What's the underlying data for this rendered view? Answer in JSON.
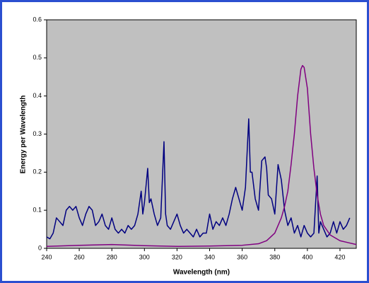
{
  "chart_data": {
    "type": "line",
    "x_label": "Wavelength (nm)",
    "y_label": "Energy per Wavelength",
    "xlim": [
      240,
      430
    ],
    "ylim": [
      0,
      0.6
    ],
    "xticks": [
      240,
      260,
      280,
      300,
      320,
      340,
      360,
      380,
      400,
      420
    ],
    "yticks": [
      0,
      0.1,
      0.2,
      0.3,
      0.4,
      0.5,
      0.6
    ],
    "grid": false,
    "plot_background": "#c0c0c0",
    "frame_color": "#2b4fd0",
    "series": [
      {
        "color": "#000080",
        "x": [
          240,
          242,
          244,
          246,
          248,
          250,
          252,
          254,
          256,
          258,
          260,
          262,
          264,
          266,
          268,
          270,
          272,
          274,
          276,
          278,
          280,
          282,
          284,
          286,
          288,
          290,
          292,
          294,
          296,
          298,
          299,
          300,
          302,
          303,
          304,
          306,
          308,
          310,
          312,
          313,
          314,
          316,
          318,
          320,
          322,
          324,
          326,
          328,
          330,
          332,
          334,
          336,
          338,
          340,
          342,
          344,
          346,
          348,
          350,
          352,
          354,
          356,
          358,
          360,
          362,
          364,
          365,
          366,
          368,
          370,
          372,
          374,
          375,
          376,
          378,
          380,
          382,
          384,
          386,
          388,
          390,
          392,
          394,
          396,
          398,
          400,
          402,
          404,
          406,
          407,
          408,
          410,
          412,
          414,
          416,
          418,
          420,
          422,
          424,
          426
        ],
        "values": [
          0.03,
          0.025,
          0.04,
          0.08,
          0.07,
          0.06,
          0.1,
          0.11,
          0.1,
          0.11,
          0.08,
          0.06,
          0.09,
          0.11,
          0.1,
          0.06,
          0.07,
          0.09,
          0.06,
          0.05,
          0.08,
          0.05,
          0.04,
          0.05,
          0.04,
          0.06,
          0.05,
          0.06,
          0.09,
          0.15,
          0.09,
          0.12,
          0.21,
          0.12,
          0.13,
          0.09,
          0.06,
          0.08,
          0.28,
          0.09,
          0.06,
          0.05,
          0.07,
          0.09,
          0.06,
          0.04,
          0.05,
          0.04,
          0.03,
          0.05,
          0.03,
          0.04,
          0.04,
          0.09,
          0.05,
          0.07,
          0.06,
          0.08,
          0.06,
          0.09,
          0.13,
          0.16,
          0.13,
          0.1,
          0.16,
          0.34,
          0.2,
          0.2,
          0.13,
          0.1,
          0.23,
          0.24,
          0.21,
          0.14,
          0.13,
          0.09,
          0.22,
          0.18,
          0.1,
          0.06,
          0.08,
          0.04,
          0.06,
          0.03,
          0.06,
          0.04,
          0.03,
          0.04,
          0.19,
          0.04,
          0.07,
          0.05,
          0.03,
          0.04,
          0.07,
          0.04,
          0.07,
          0.05,
          0.06,
          0.08
        ]
      },
      {
        "color": "#800080",
        "x": [
          240,
          260,
          280,
          300,
          320,
          340,
          360,
          370,
          375,
          380,
          384,
          386,
          388,
          390,
          392,
          394,
          396,
          397,
          398,
          400,
          402,
          404,
          406,
          408,
          410,
          414,
          420,
          425,
          430
        ],
        "values": [
          0.005,
          0.008,
          0.01,
          0.007,
          0.005,
          0.006,
          0.008,
          0.012,
          0.02,
          0.04,
          0.08,
          0.11,
          0.15,
          0.22,
          0.3,
          0.4,
          0.47,
          0.48,
          0.475,
          0.42,
          0.3,
          0.21,
          0.14,
          0.09,
          0.06,
          0.035,
          0.02,
          0.015,
          0.01
        ]
      }
    ]
  }
}
